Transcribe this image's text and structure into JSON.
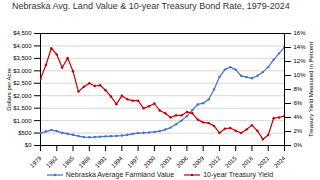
{
  "chart_data": {
    "type": "line",
    "title": "Nebraska Avg. Land Value & 10-year Treasury Bond Rate, 1979-2024",
    "x": [
      1979,
      1980,
      1981,
      1982,
      1983,
      1984,
      1985,
      1986,
      1987,
      1988,
      1989,
      1990,
      1991,
      1992,
      1993,
      1994,
      1995,
      1996,
      1997,
      1998,
      1999,
      2000,
      2001,
      2002,
      2003,
      2004,
      2005,
      2006,
      2007,
      2008,
      2009,
      2010,
      2011,
      2012,
      2013,
      2014,
      2015,
      2016,
      2017,
      2018,
      2019,
      2020,
      2021,
      2022,
      2023,
      2024
    ],
    "series": [
      {
        "name": "Nebraska Average Farmland Value",
        "color": "#4472C4",
        "marker": "circle",
        "values": [
          500,
          560,
          620,
          580,
          510,
          470,
          430,
          380,
          340,
          330,
          340,
          355,
          365,
          375,
          385,
          400,
          430,
          465,
          500,
          510,
          525,
          545,
          580,
          640,
          720,
          850,
          1000,
          1180,
          1420,
          1650,
          1700,
          1850,
          2250,
          2750,
          3050,
          3150,
          3050,
          2800,
          2750,
          2700,
          2800,
          2950,
          3150,
          3450,
          3700,
          3950
        ]
      },
      {
        "name": "10-year Treasury Yield",
        "color": "#C00000",
        "marker": "circle",
        "axis": "y2",
        "values": [
          9.5,
          11.5,
          13.9,
          13.0,
          11.1,
          12.5,
          10.6,
          7.7,
          8.4,
          8.9,
          8.5,
          8.6,
          7.9,
          7.0,
          5.9,
          7.1,
          6.6,
          6.4,
          6.4,
          5.3,
          5.6,
          6.0,
          5.0,
          4.6,
          4.0,
          4.3,
          4.3,
          4.8,
          4.6,
          3.7,
          3.3,
          3.2,
          2.8,
          1.8,
          2.4,
          2.5,
          2.1,
          1.8,
          2.3,
          2.9,
          2.1,
          0.9,
          1.5,
          3.9,
          4.0,
          4.2
        ]
      }
    ],
    "xlim": [
      1979,
      2024
    ],
    "xticks": [
      1979,
      1982,
      1985,
      1988,
      1991,
      1994,
      1997,
      2000,
      2003,
      2006,
      2009,
      2012,
      2015,
      2018,
      2021,
      2024
    ],
    "ylabel": "Dollars per Acre",
    "ylim": [
      0,
      4500
    ],
    "yticks": [
      {
        "value": 0,
        "label": "$0"
      },
      {
        "value": 500,
        "label": "$500"
      },
      {
        "value": 1000,
        "label": "$1,000"
      },
      {
        "value": 1500,
        "label": "$1,500"
      },
      {
        "value": 2000,
        "label": "$2,000"
      },
      {
        "value": 2500,
        "label": "$2,500"
      },
      {
        "value": 3000,
        "label": "$3,000"
      },
      {
        "value": 3500,
        "label": "$3,500"
      },
      {
        "value": 4000,
        "label": "$4,000"
      },
      {
        "value": 4500,
        "label": "$4,500"
      }
    ],
    "y2label": "Treasury Yield Measured in Percent",
    "y2lim": [
      0,
      16
    ],
    "y2ticks": [
      {
        "value": 0,
        "label": "0%"
      },
      {
        "value": 2,
        "label": "2%"
      },
      {
        "value": 4,
        "label": "4%"
      },
      {
        "value": 6,
        "label": "6%"
      },
      {
        "value": 8,
        "label": "8%"
      },
      {
        "value": 10,
        "label": "10%"
      },
      {
        "value": 12,
        "label": "12%"
      },
      {
        "value": 14,
        "label": "14%"
      },
      {
        "value": 16,
        "label": "16%"
      }
    ],
    "grid": true,
    "legend": "bottom"
  }
}
